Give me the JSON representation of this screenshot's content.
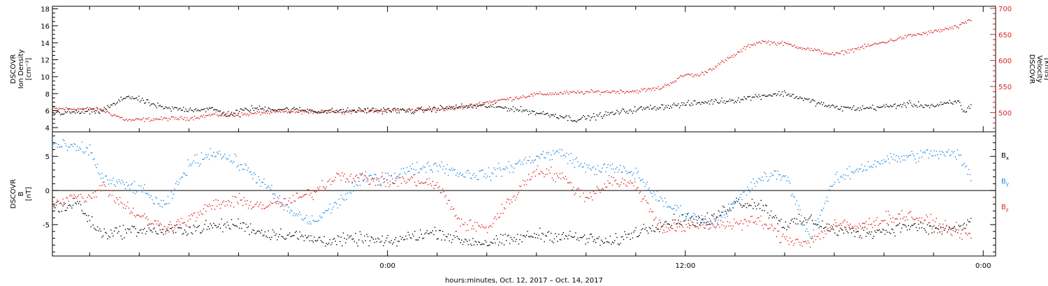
{
  "chart_data": [
    {
      "type": "scatter",
      "panel": "density-velocity",
      "x_unit": "hours from Oct. 12, 2017 00:00",
      "xlim": [
        -13.5,
        24.5
      ],
      "xticks": [
        {
          "x": 0,
          "label": "0:00"
        },
        {
          "x": 12,
          "label": "12:00"
        },
        {
          "x": 24,
          "label": "0:00"
        }
      ],
      "left_axis": {
        "label_lines": [
          "DSCOVR",
          "Ion Density",
          "[cm⁻³]"
        ],
        "ylim": [
          3.5,
          18.3
        ],
        "ticks": [
          4,
          6,
          8,
          10,
          12,
          14,
          16,
          18
        ]
      },
      "right_axis": {
        "label_lines": [
          "DSCOVR",
          "Velocity",
          "[km/s]"
        ],
        "ylim": [
          463,
          704
        ],
        "ticks": [
          500,
          550,
          600,
          650,
          700
        ],
        "color": "#e02020"
      },
      "series": [
        {
          "name": "Ion Density",
          "axis": "left",
          "color": "#000000",
          "x": [
            -13.5,
            -12,
            -11.6,
            -11,
            -10.5,
            -9,
            -8,
            -7,
            -6.5,
            -5.5,
            -4,
            -3,
            -2,
            -1,
            0,
            1,
            2,
            3,
            4,
            5,
            6,
            7,
            7.5,
            8,
            9,
            10,
            11,
            12,
            13,
            14,
            15,
            16,
            17,
            18,
            19,
            20,
            21,
            22,
            23,
            23.2,
            23.5
          ],
          "y": [
            5.8,
            5.9,
            6.0,
            6.8,
            7.8,
            6.3,
            6.2,
            6.2,
            5.6,
            6.3,
            6.2,
            6.0,
            6.0,
            6.1,
            6.1,
            6.0,
            6.3,
            6.5,
            6.6,
            6.3,
            5.8,
            5.4,
            5.0,
            5.2,
            5.7,
            6.2,
            6.5,
            6.8,
            7.1,
            7.3,
            7.8,
            8.1,
            7.2,
            6.4,
            6.3,
            6.5,
            6.8,
            6.6,
            7.1,
            5.9,
            6.6
          ]
        },
        {
          "name": "Velocity",
          "axis": "right",
          "color": "#e02020",
          "x": [
            -13.5,
            -12,
            -11.5,
            -10.5,
            -9,
            -8,
            -7,
            -6.5,
            -6,
            -5,
            -4,
            -3,
            -2,
            -1,
            0,
            1,
            2,
            3,
            3.5,
            4,
            5,
            6,
            7,
            8,
            9,
            10,
            11,
            11.6,
            12,
            12.5,
            13,
            14,
            14.5,
            15,
            16,
            17,
            18,
            19,
            20,
            21,
            22,
            23,
            23.5
          ],
          "y": [
            508,
            508,
            505,
            486,
            489,
            490,
            497,
            496,
            496,
            501,
            502,
            503,
            503,
            504,
            505,
            506,
            507,
            511,
            516,
            521,
            528,
            536,
            538,
            540,
            541,
            542,
            548,
            563,
            574,
            572,
            584,
            612,
            628,
            637,
            633,
            622,
            612,
            625,
            636,
            648,
            656,
            666,
            679
          ]
        }
      ]
    },
    {
      "type": "scatter",
      "panel": "magnetic-field",
      "x_unit": "hours from Oct. 12, 2017 00:00",
      "xlim": [
        -13.5,
        24.5
      ],
      "axis": {
        "label_lines": [
          "DSCOVR",
          "B",
          "[nT]"
        ],
        "ylim": [
          -9.6,
          8.6
        ],
        "ticks": [
          -5,
          0,
          5
        ],
        "zero_line": true
      },
      "xlabel": "hours:minutes, Oct. 12, 2017 – Oct. 14, 2017",
      "series": [
        {
          "name": "Bx",
          "color": "#000000",
          "x": [
            -13.5,
            -13,
            -12.5,
            -12,
            -11.5,
            -11,
            -10,
            -9,
            -8,
            -7,
            -6,
            -5,
            -4,
            -3,
            -2,
            -1,
            0,
            1,
            2,
            3,
            4,
            5,
            6,
            7,
            8,
            9,
            10,
            11,
            12,
            13,
            14,
            15,
            16,
            17,
            18,
            19,
            20,
            21,
            22,
            23,
            23.5
          ],
          "y": [
            -2,
            -2.5,
            -1.6,
            -4.5,
            -6.3,
            -6.0,
            -5.7,
            -5.8,
            -5.6,
            -5.2,
            -4.9,
            -6.2,
            -6.4,
            -7.1,
            -7.3,
            -7.0,
            -7.6,
            -6.6,
            -6.0,
            -7.3,
            -7.6,
            -7.2,
            -6.4,
            -6.6,
            -7.0,
            -7.6,
            -6.0,
            -4.8,
            -4.1,
            -4.4,
            -1.6,
            -2.0,
            -5.0,
            -4.2,
            -5.8,
            -6.1,
            -5.8,
            -5.1,
            -5.7,
            -5.6,
            -4.2
          ]
        },
        {
          "name": "By",
          "color": "#1e88e5",
          "x": [
            -13.5,
            -13,
            -12.5,
            -12,
            -11.5,
            -11,
            -10,
            -9,
            -8,
            -7,
            -6,
            -5,
            -4,
            -3,
            -2,
            -1,
            0,
            1,
            2,
            3,
            4,
            5,
            6,
            7,
            8,
            9,
            10,
            11,
            12,
            13,
            14,
            15,
            16,
            17,
            18,
            19,
            20,
            21,
            22,
            23,
            23.5
          ],
          "y": [
            6.8,
            6.5,
            6.2,
            5.9,
            1.8,
            1.2,
            0.3,
            -2.4,
            3.9,
            5.8,
            4.0,
            1.1,
            -3.0,
            -4.6,
            -1.7,
            1.8,
            1.9,
            3.2,
            3.8,
            2.5,
            2.4,
            3.6,
            5.0,
            5.6,
            3.3,
            3.2,
            2.6,
            -1.6,
            -3.4,
            -4.8,
            -1.8,
            1.9,
            2.4,
            -6.9,
            1.5,
            3.3,
            4.5,
            5.0,
            5.5,
            5.3,
            1.8
          ]
        },
        {
          "name": "Bz",
          "color": "#e02020",
          "x": [
            -13.5,
            -13,
            -12.5,
            -12,
            -11.5,
            -11,
            -10,
            -9,
            -8,
            -7,
            -6,
            -5,
            -4,
            -3,
            -2,
            -1,
            0,
            1,
            2,
            3,
            4,
            5,
            6,
            7,
            8,
            9,
            10,
            11,
            12,
            13,
            14,
            15,
            16,
            17,
            18,
            19,
            20,
            21,
            22,
            23,
            23.5
          ],
          "y": [
            -1.8,
            -1.2,
            -0.6,
            -1.1,
            1.1,
            -1.0,
            -3.7,
            -5.4,
            -4.2,
            -2.0,
            -1.5,
            -2.2,
            -1.6,
            -0.2,
            2.4,
            1.8,
            1.4,
            1.6,
            0.8,
            -4.9,
            -5.5,
            -1.1,
            3.2,
            2.0,
            -1.0,
            1.5,
            0.8,
            -5.4,
            -5.4,
            -4.9,
            -4.8,
            -4.4,
            -7.1,
            -7.5,
            -4.9,
            -5.3,
            -4.0,
            -3.6,
            -4.8,
            -5.9,
            -6.7
          ]
        }
      ],
      "legend": [
        "Bx",
        "By",
        "Bz"
      ]
    }
  ]
}
